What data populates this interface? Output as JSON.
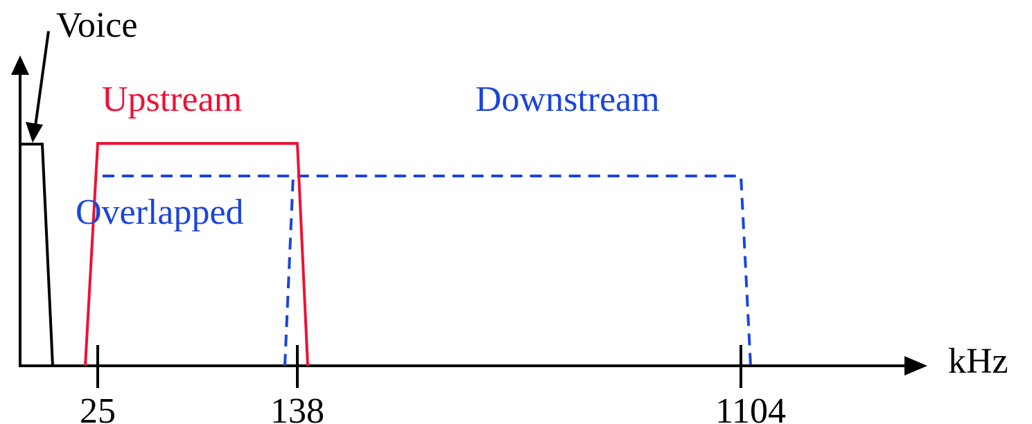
{
  "labels": {
    "voice": "Voice",
    "upstream": "Upstream",
    "downstream": "Downstream",
    "overlapped": "Overlapped",
    "unit": "kHz"
  },
  "ticks": [
    "25",
    "138",
    "1104"
  ],
  "colors": {
    "axis": "#000000",
    "voice": "#000000",
    "upstream": "#ee1133",
    "downstream": "#1a44dd"
  }
}
